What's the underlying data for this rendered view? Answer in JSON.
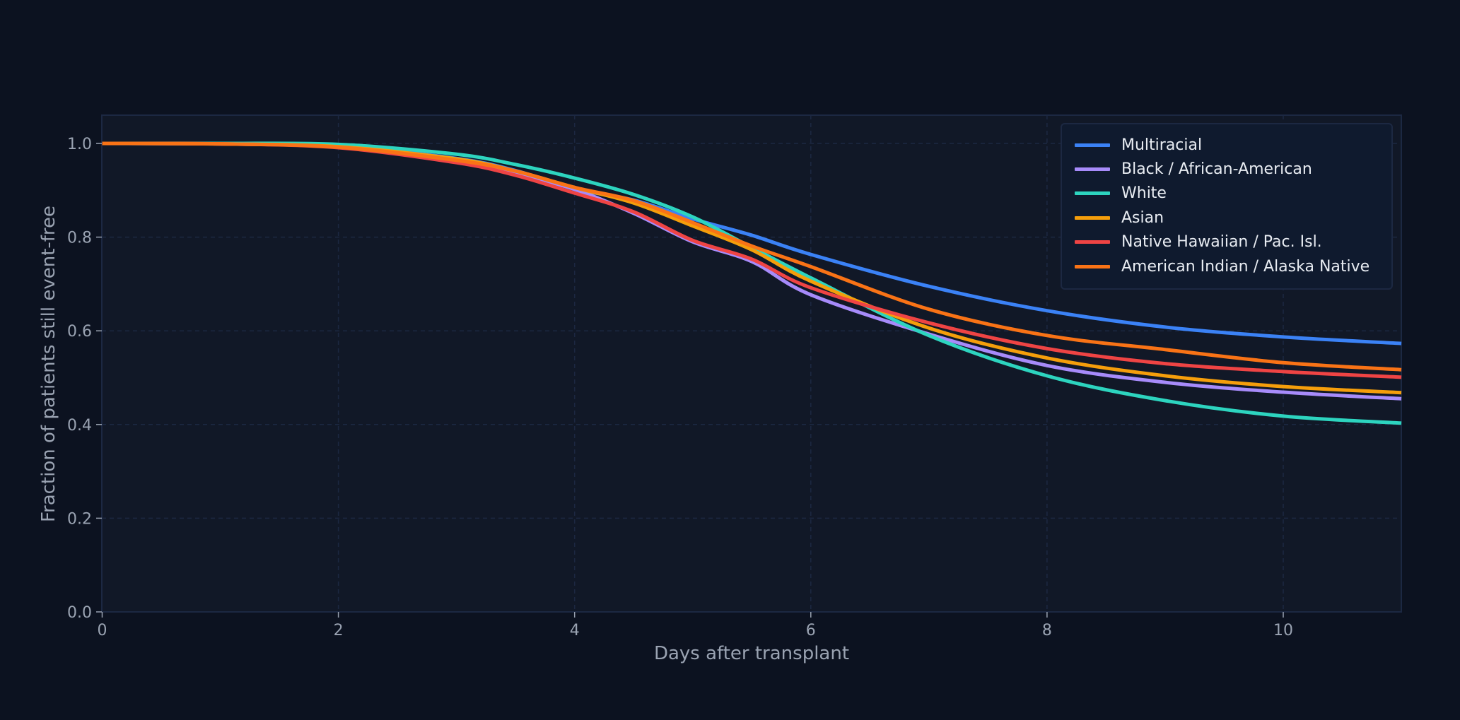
{
  "chart_data": {
    "type": "line",
    "title": "",
    "xlabel": "Days after transplant",
    "ylabel": "Fraction of patients still event-free",
    "xlim": [
      0,
      11
    ],
    "ylim": [
      0,
      1.06
    ],
    "xticks": [
      0,
      2,
      4,
      6,
      8,
      10
    ],
    "xtick_labels": [
      "0",
      "2",
      "4",
      "6",
      "8",
      "10"
    ],
    "yticks": [
      0.0,
      0.2,
      0.4,
      0.6,
      0.8,
      1.0
    ],
    "ytick_labels": [
      "0.0",
      "0.2",
      "0.4",
      "0.6",
      "0.8",
      "1.0"
    ],
    "grid": true,
    "legend_position": "upper right",
    "x": [
      0,
      1,
      2,
      3,
      3.5,
      4,
      4.5,
      5,
      5.5,
      6,
      7,
      8,
      9,
      10,
      11
    ],
    "series": [
      {
        "name": "Multiracial",
        "color": "#3b82f6",
        "values": [
          1.0,
          0.999,
          0.994,
          0.968,
          0.942,
          0.903,
          0.879,
          0.839,
          0.804,
          0.763,
          0.695,
          0.643,
          0.608,
          0.587,
          0.573
        ]
      },
      {
        "name": "Black / African-American",
        "color": "#a78bfa",
        "values": [
          1.0,
          0.999,
          0.992,
          0.962,
          0.935,
          0.902,
          0.851,
          0.79,
          0.748,
          0.677,
          0.593,
          0.526,
          0.49,
          0.469,
          0.455
        ]
      },
      {
        "name": "White",
        "color": "#2dd4bf",
        "values": [
          1.0,
          1.0,
          0.998,
          0.977,
          0.955,
          0.926,
          0.891,
          0.843,
          0.778,
          0.713,
          0.59,
          0.504,
          0.451,
          0.418,
          0.403
        ]
      },
      {
        "name": "Asian",
        "color": "#f59e0b",
        "values": [
          1.0,
          0.999,
          0.993,
          0.967,
          0.941,
          0.906,
          0.873,
          0.824,
          0.773,
          0.706,
          0.606,
          0.542,
          0.504,
          0.481,
          0.468
        ]
      },
      {
        "name": "Native Hawaiian / Pac. Isl.",
        "color": "#ef4444",
        "values": [
          1.0,
          0.999,
          0.991,
          0.959,
          0.932,
          0.894,
          0.854,
          0.793,
          0.753,
          0.692,
          0.617,
          0.562,
          0.53,
          0.513,
          0.501
        ]
      },
      {
        "name": "American Indian / Alaska Native",
        "color": "#f97316",
        "values": [
          1.0,
          0.999,
          0.992,
          0.964,
          0.941,
          0.906,
          0.878,
          0.831,
          0.781,
          0.737,
          0.646,
          0.59,
          0.56,
          0.532,
          0.517
        ]
      }
    ]
  },
  "colors": {
    "background": "#0c1220",
    "plot_background": "#111827",
    "grid": "#1c2842",
    "text": "#9aa3b2",
    "legend_text": "#e8ecf2"
  }
}
